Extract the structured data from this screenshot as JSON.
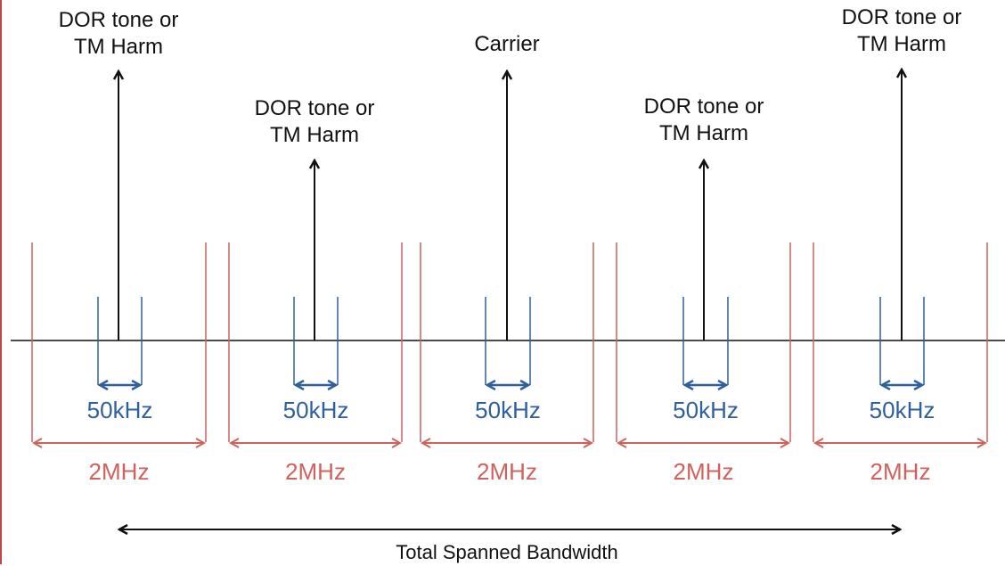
{
  "diagram": {
    "tones": [
      {
        "label_line1": "DOR tone or",
        "label_line2": "TM Harm"
      },
      {
        "label_line1": "DOR tone or",
        "label_line2": "TM Harm"
      },
      {
        "label_line1": "Carrier",
        "label_line2": ""
      },
      {
        "label_line1": "DOR tone or",
        "label_line2": "TM Harm"
      },
      {
        "label_line1": "DOR tone or",
        "label_line2": "TM Harm"
      }
    ],
    "narrow_band_label": "50kHz",
    "wide_band_label": "2MHz",
    "total_span_label": "Total Spanned Bandwidth",
    "colors": {
      "axis": "#111111",
      "tone": "#111111",
      "narrow_band": "#2e5f9e",
      "wide_band": "#d0625d",
      "left_rule": "#b94a48"
    }
  }
}
